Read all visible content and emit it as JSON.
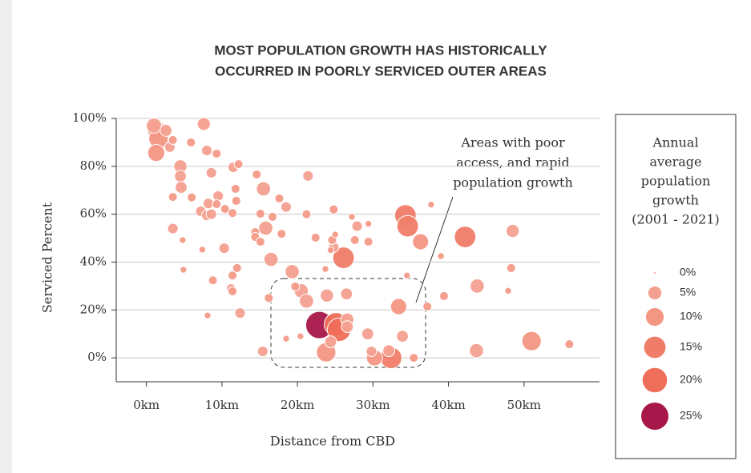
{
  "chart_data": {
    "type": "scatter",
    "title": [
      "MOST POPULATION GROWTH HAS HISTORICALLY",
      "OCCURRED IN POORLY SERVICED OUTER AREAS"
    ],
    "x_label": "Distance from CBD",
    "y_label": "Serviced Percent",
    "annotation": [
      "Areas with poor",
      "access, and rapid",
      "population growth"
    ],
    "xlim": [
      -4,
      60
    ],
    "ylim": [
      -10,
      100
    ],
    "xticks": [
      {
        "value": 0,
        "label": "0km"
      },
      {
        "value": 10,
        "label": "10km"
      },
      {
        "value": 20,
        "label": "20km"
      },
      {
        "value": 30,
        "label": "30km"
      },
      {
        "value": 40,
        "label": "40km"
      },
      {
        "value": 50,
        "label": "50km"
      }
    ],
    "yticks": [
      {
        "value": 0,
        "label": "0%"
      },
      {
        "value": 20,
        "label": "20%"
      },
      {
        "value": 40,
        "label": "40%"
      },
      {
        "value": 60,
        "label": "60%"
      },
      {
        "value": 80,
        "label": "80%"
      },
      {
        "value": 100,
        "label": "100%"
      }
    ],
    "grid": true,
    "x": [
      22.9,
      34.3,
      34.6,
      42.2,
      26.1,
      25.1,
      25.5,
      23.8,
      32.4,
      51,
      30.2,
      33.4,
      36.3,
      43.8,
      43.7,
      48.5,
      1.3,
      1.6,
      1.3,
      1,
      7.6,
      4.5,
      15.5,
      15.8,
      16.5,
      19.3,
      20.5,
      21.2,
      23.9,
      26.5,
      26.6,
      24.4,
      29.3,
      33.9,
      32.1,
      15.4,
      24.8,
      27.9,
      21.4,
      18.5,
      9.5,
      3.5,
      10.3,
      8.8,
      12.4,
      8.1,
      16.2,
      39.4,
      48.3,
      56,
      35.4,
      37.2,
      37.7,
      29.4,
      39,
      47.9,
      24.8,
      21.2,
      2.6,
      3.1,
      3.5,
      5.9,
      4.5,
      4.6,
      6,
      8,
      9.3,
      8.6,
      7.2,
      8,
      8.6,
      8.2,
      9.3,
      11.5,
      12.2,
      11.8,
      10.4,
      11.4,
      11.9,
      14.6,
      17.6,
      15.1,
      14.4,
      17.9,
      14.4,
      15.1,
      11.4,
      12,
      11.2,
      11.4,
      4.9,
      4.8,
      7.4,
      3.5,
      16.7,
      19.7,
      22.4,
      24.6,
      23.7,
      27.6,
      25,
      27.2,
      29.4,
      34.5,
      26.6,
      24.4,
      29.8,
      20.4,
      18.5
    ],
    "values": [
      13.7,
      59.5,
      55,
      50.5,
      41.8,
      14,
      11.7,
      2.3,
      0,
      7,
      0,
      21.4,
      48.5,
      30,
      3,
      53,
      95.3,
      91.6,
      85.6,
      97,
      97.7,
      80,
      70.6,
      54.2,
      41.1,
      36,
      28,
      23.7,
      26,
      26.7,
      16,
      6.7,
      10,
      9,
      3,
      2.7,
      46.2,
      55,
      76,
      63,
      67.6,
      54,
      45.8,
      32.4,
      18.7,
      17.7,
      25,
      25.8,
      37.5,
      5.7,
      0,
      21.4,
      64,
      56,
      42.5,
      28,
      62,
      60,
      95,
      88,
      91,
      90,
      75.9,
      71.2,
      67,
      86.6,
      85.3,
      77.3,
      61.2,
      59.5,
      60,
      64.5,
      64.2,
      79.6,
      80.9,
      70.6,
      62.2,
      60.5,
      65.6,
      76.6,
      66.6,
      60.2,
      52.5,
      51.8,
      50.5,
      48.5,
      34.4,
      37.5,
      29.1,
      27.8,
      36.8,
      49.2,
      45.2,
      67.2,
      58.9,
      29.8,
      50.2,
      49.2,
      37.1,
      49.2,
      51.5,
      58.9,
      48.5,
      34.4,
      13,
      45,
      2.7,
      9,
      8
    ],
    "sizes": [
      25,
      15,
      15,
      15,
      15,
      18,
      18,
      12,
      15,
      12,
      8,
      8,
      8,
      6,
      6,
      5,
      10,
      12,
      9,
      7,
      5,
      5,
      6,
      6,
      6,
      6,
      6,
      6,
      5,
      4,
      5,
      4,
      4,
      4,
      4,
      3,
      3,
      3,
      3,
      3,
      3,
      3,
      3,
      2,
      3,
      1,
      2,
      2,
      2,
      2,
      2,
      2,
      1,
      1,
      1,
      1,
      2,
      2,
      4,
      3,
      2,
      2,
      4,
      4,
      2,
      3,
      2,
      3,
      3,
      3,
      3,
      3,
      2,
      3,
      2,
      2,
      2,
      2,
      2,
      2,
      2,
      2,
      2,
      2,
      2,
      2,
      2,
      2,
      2,
      2,
      1,
      1,
      1,
      2,
      2,
      2,
      2,
      2,
      1,
      2,
      1,
      1,
      2,
      1,
      4,
      1,
      3,
      1,
      1
    ],
    "size_legend": {
      "title": [
        "Annual",
        "average",
        "population",
        "growth",
        "(2001 - 2021)"
      ],
      "values": [
        0,
        5,
        10,
        15,
        20,
        25
      ],
      "value_labels": [
        "0%",
        "5%",
        "10%",
        "15%",
        "20%",
        "25%"
      ],
      "colors": [
        "#f49a88",
        "#f4a090",
        "#f39684",
        "#f07d68",
        "#ef6e59",
        "#a8174a"
      ]
    }
  }
}
